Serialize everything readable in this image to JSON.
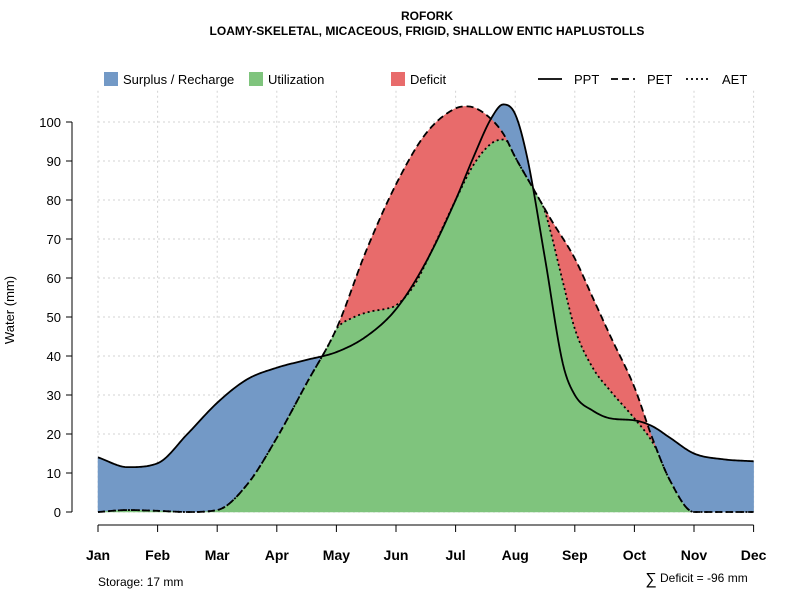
{
  "chart_data": {
    "type": "area",
    "title": "ROFORK",
    "subtitle": "LOAMY-SKELETAL, MICACEOUS, FRIGID, SHALLOW ENTIC HAPLUSTOLLS",
    "ylabel": "Water (mm)",
    "xlabel": "",
    "categories": [
      "Jan",
      "Feb",
      "Mar",
      "Apr",
      "May",
      "Jun",
      "Jul",
      "Aug",
      "Sep",
      "Oct",
      "Nov",
      "Dec"
    ],
    "yticks": [
      0,
      10,
      20,
      30,
      40,
      50,
      60,
      70,
      80,
      90,
      100
    ],
    "ylim": [
      0,
      108
    ],
    "grid": true,
    "legend": [
      {
        "label": "Surplus / Recharge",
        "kind": "fill",
        "color": "#7399c6"
      },
      {
        "label": "Utilization",
        "kind": "fill",
        "color": "#7fc47d"
      },
      {
        "label": "Deficit",
        "kind": "fill",
        "color": "#e86b6b"
      },
      {
        "label": "PPT",
        "kind": "line",
        "dash": "solid"
      },
      {
        "label": "PET",
        "kind": "line",
        "dash": "dashed"
      },
      {
        "label": "AET",
        "kind": "line",
        "dash": "dotted"
      }
    ],
    "legend_position": "top",
    "series": [
      {
        "name": "PPT",
        "x": [
          1,
          1.5,
          2,
          2.5,
          3,
          3.5,
          4,
          4.5,
          5,
          5.5,
          6,
          6.5,
          7,
          7.3,
          7.6,
          7.8,
          8,
          8.2,
          8.5,
          8.8,
          9,
          9.3,
          9.6,
          10,
          10.3,
          10.6,
          11,
          11.5,
          12
        ],
        "values": [
          14,
          11.5,
          12.5,
          20,
          28,
          34,
          37,
          39,
          41,
          45,
          52,
          64,
          80,
          91,
          101,
          104.5,
          102,
          91,
          65,
          38,
          30,
          26,
          24,
          23.5,
          22,
          19,
          15,
          13.5,
          13
        ]
      },
      {
        "name": "PET",
        "x": [
          1,
          1.5,
          2,
          2.5,
          3,
          3.5,
          4,
          4.5,
          5,
          5.5,
          6,
          6.5,
          7,
          7.2,
          7.5,
          7.8,
          8,
          8.3,
          8.6,
          9,
          9.3,
          9.6,
          10,
          10.3,
          10.6,
          11,
          11.5,
          12
        ],
        "values": [
          0,
          0.5,
          0.3,
          0,
          0.5,
          7,
          19,
          33,
          47,
          67,
          84,
          97,
          103.5,
          104,
          102,
          97,
          91,
          83,
          75,
          65,
          55,
          45,
          32,
          19,
          8,
          0,
          0,
          0
        ]
      },
      {
        "name": "AET",
        "x": [
          1,
          1.5,
          2,
          2.5,
          3,
          3.5,
          4,
          4.5,
          5,
          5.3,
          5.6,
          5.8,
          6,
          6.3,
          6.6,
          7,
          7.3,
          7.6,
          7.8,
          8,
          8.2,
          8.5,
          8.8,
          9,
          9.3,
          9.6,
          10,
          10.3,
          10.6,
          11,
          11.5,
          12
        ],
        "values": [
          0,
          0.5,
          0.3,
          0,
          0.5,
          7,
          19,
          33,
          47,
          50,
          51.5,
          52,
          53,
          58,
          67,
          80,
          89,
          94.5,
          95.5,
          93,
          88,
          77,
          59,
          47,
          37,
          31,
          24,
          18,
          9,
          0,
          0,
          0
        ]
      }
    ],
    "regions": [
      {
        "label": "Surplus / Recharge",
        "between": [
          "PPT",
          "PET"
        ],
        "where": "PPT > PET"
      },
      {
        "label": "Utilization",
        "between": [
          "0",
          "AET"
        ]
      },
      {
        "label": "Deficit",
        "between": [
          "AET",
          "PET"
        ],
        "where": "PET > AET"
      }
    ],
    "annotations": {
      "storage": "Storage: 17 mm",
      "deficit_symbol": "∑",
      "deficit": "Deficit = -96 mm"
    }
  }
}
